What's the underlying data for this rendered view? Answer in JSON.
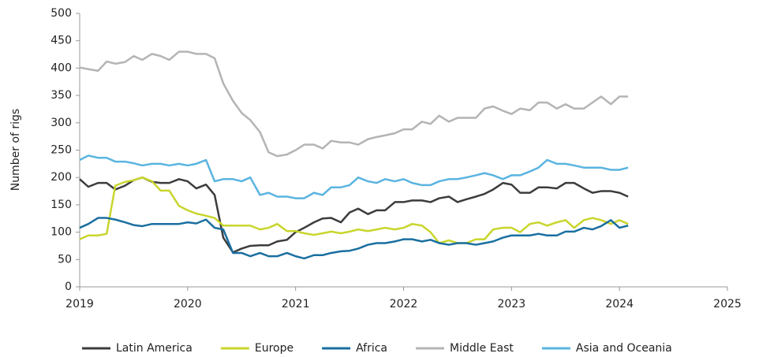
{
  "chart_data": {
    "type": "line",
    "ylabel": "Number of rigs",
    "x": [
      2019,
      2019.08,
      2019.17,
      2019.25,
      2019.33,
      2019.42,
      2019.5,
      2019.58,
      2019.67,
      2019.75,
      2019.83,
      2019.92,
      2020,
      2020.08,
      2020.17,
      2020.25,
      2020.33,
      2020.42,
      2020.5,
      2020.58,
      2020.67,
      2020.75,
      2020.83,
      2020.92,
      2021,
      2021.08,
      2021.17,
      2021.25,
      2021.33,
      2021.42,
      2021.5,
      2021.58,
      2021.67,
      2021.75,
      2021.83,
      2021.92,
      2022,
      2022.08,
      2022.17,
      2022.25,
      2022.33,
      2022.42,
      2022.5,
      2022.58,
      2022.67,
      2022.75,
      2022.83,
      2022.92,
      2023,
      2023.08,
      2023.17,
      2023.25,
      2023.33,
      2023.42,
      2023.5,
      2023.58,
      2023.67,
      2023.75,
      2023.83,
      2023.92,
      2024,
      2024.08
    ],
    "series": [
      {
        "name": "Latin America",
        "color": "#3c3c3c",
        "values": [
          197,
          183,
          190,
          190,
          178,
          185,
          195,
          200,
          192,
          190,
          190,
          197,
          193,
          180,
          187,
          168,
          90,
          63,
          70,
          75,
          76,
          76,
          83,
          86,
          100,
          108,
          118,
          125,
          126,
          118,
          136,
          143,
          133,
          140,
          140,
          155,
          155,
          158,
          158,
          155,
          162,
          165,
          155,
          160,
          165,
          170,
          178,
          190,
          187,
          172,
          172,
          182,
          182,
          180,
          190,
          190,
          180,
          172,
          175,
          175,
          172,
          165
        ]
      },
      {
        "name": "Europe",
        "color": "#c8d62c",
        "values": [
          87,
          94,
          94,
          97,
          185,
          192,
          195,
          200,
          193,
          176,
          176,
          148,
          140,
          134,
          130,
          126,
          112,
          112,
          112,
          112,
          105,
          108,
          115,
          102,
          102,
          98,
          95,
          98,
          101,
          98,
          101,
          105,
          102,
          105,
          108,
          105,
          108,
          115,
          112,
          100,
          80,
          85,
          80,
          80,
          87,
          87,
          105,
          108,
          108,
          100,
          115,
          118,
          112,
          118,
          122,
          108,
          122,
          126,
          122,
          115,
          122,
          115
        ]
      },
      {
        "name": "Africa",
        "color": "#1a6fa0",
        "values": [
          108,
          115,
          126,
          126,
          123,
          118,
          113,
          111,
          115,
          115,
          115,
          115,
          118,
          116,
          123,
          108,
          105,
          62,
          62,
          56,
          62,
          56,
          56,
          62,
          56,
          52,
          58,
          58,
          62,
          65,
          66,
          70,
          77,
          80,
          80,
          83,
          87,
          87,
          83,
          86,
          80,
          77,
          80,
          80,
          77,
          80,
          83,
          90,
          94,
          94,
          94,
          97,
          94,
          94,
          101,
          101,
          108,
          105,
          111,
          122,
          108,
          112
        ]
      },
      {
        "name": "Middle East",
        "color": "#b4b4b4",
        "values": [
          401,
          398,
          395,
          412,
          408,
          411,
          422,
          415,
          426,
          422,
          415,
          430,
          430,
          426,
          426,
          418,
          372,
          340,
          318,
          305,
          283,
          246,
          239,
          242,
          250,
          260,
          260,
          253,
          267,
          264,
          264,
          260,
          270,
          274,
          277,
          281,
          288,
          288,
          302,
          298,
          313,
          302,
          309,
          309,
          309,
          326,
          330,
          322,
          316,
          326,
          323,
          337,
          337,
          326,
          334,
          326,
          326,
          337,
          348,
          334,
          348,
          348
        ]
      },
      {
        "name": "Asia and Oceania",
        "color": "#5ab4e0",
        "values": [
          232,
          240,
          236,
          236,
          229,
          229,
          226,
          222,
          225,
          225,
          222,
          225,
          222,
          225,
          232,
          193,
          197,
          197,
          193,
          200,
          168,
          172,
          165,
          165,
          162,
          162,
          172,
          168,
          182,
          182,
          186,
          200,
          193,
          190,
          197,
          193,
          197,
          190,
          186,
          186,
          193,
          197,
          197,
          200,
          204,
          208,
          204,
          197,
          204,
          204,
          211,
          218,
          232,
          225,
          225,
          222,
          218,
          218,
          218,
          214,
          214,
          218
        ]
      }
    ],
    "xlim": [
      2019,
      2025
    ],
    "xticks": [
      2019,
      2020,
      2021,
      2022,
      2023,
      2024,
      2025
    ],
    "ylim": [
      0,
      500
    ],
    "yticks": [
      0,
      50,
      100,
      150,
      200,
      250,
      300,
      350,
      400,
      450,
      500
    ],
    "grid": false,
    "legend": "bottom"
  }
}
